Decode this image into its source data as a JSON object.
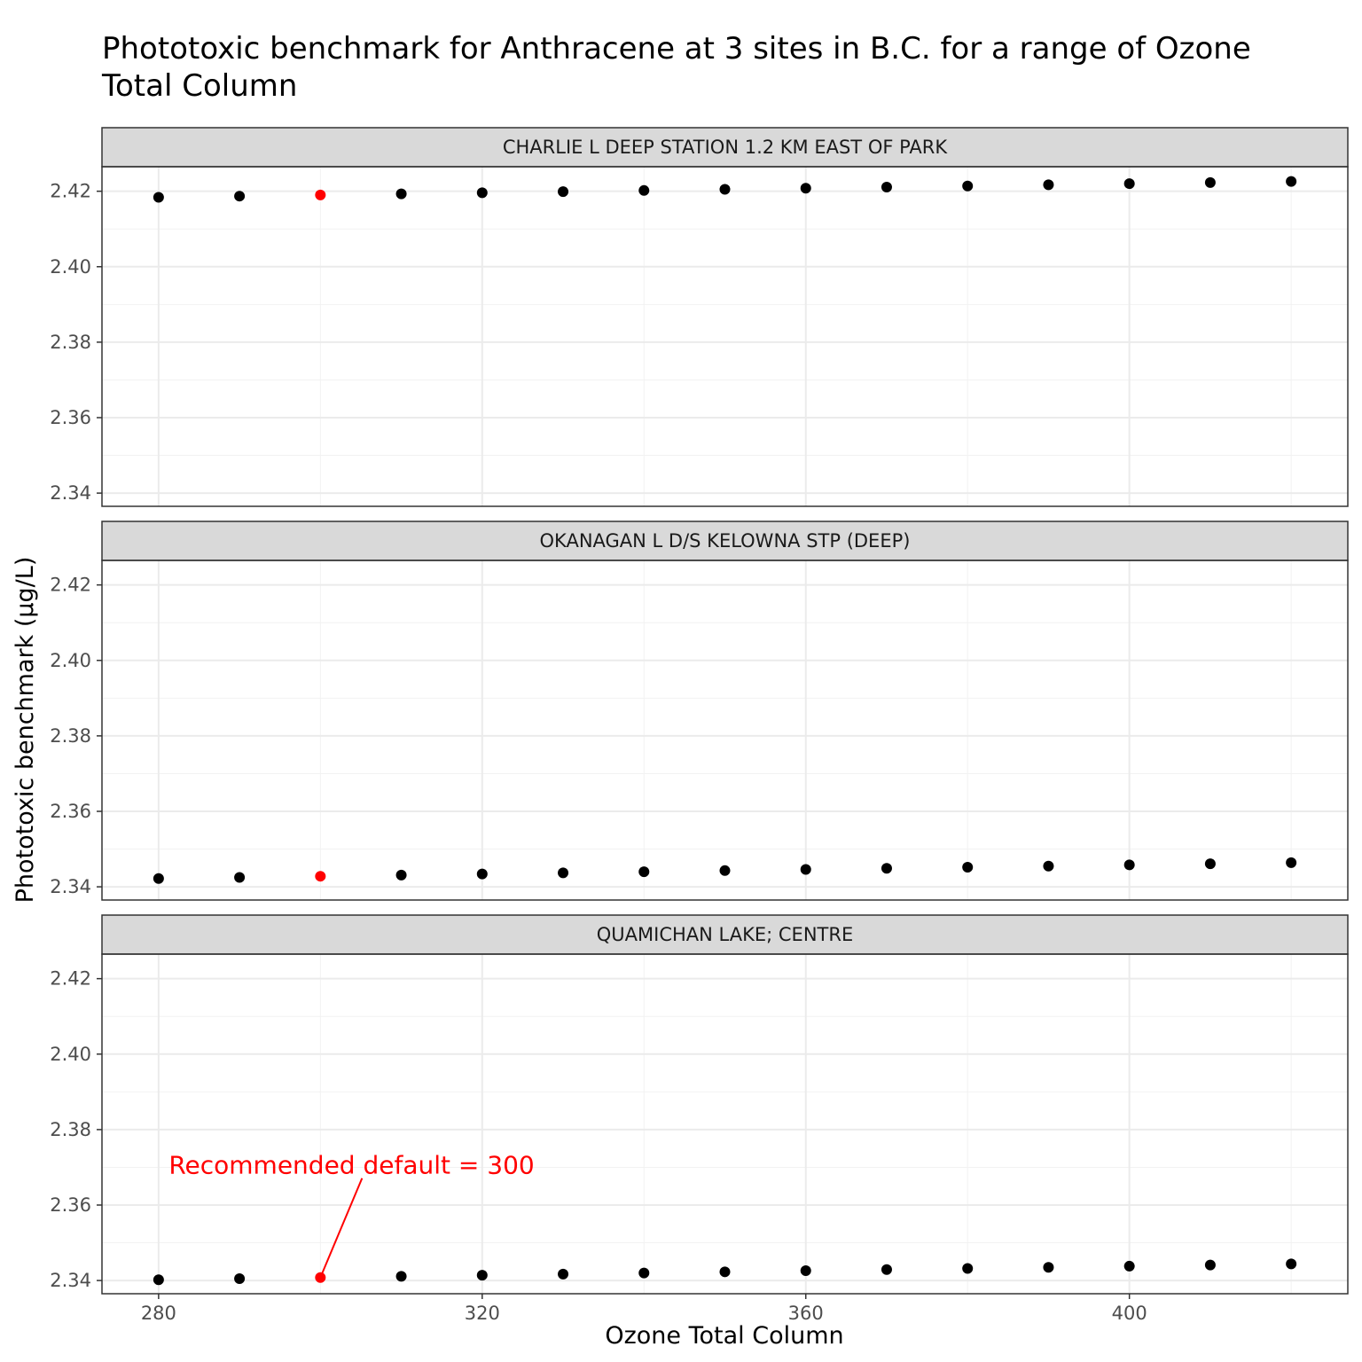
{
  "chart_data": {
    "type": "scatter",
    "title_lines": [
      "Phototoxic benchmark for Anthracene at 3 sites in B.C. for a range of Ozone",
      "Total Column"
    ],
    "xlabel": "Ozone Total Column",
    "ylabel": "Phototoxic benchmark (µg/L)",
    "xlim": [
      273,
      427
    ],
    "ylim": [
      2.3365,
      2.4265
    ],
    "x_ticks": [
      280,
      320,
      360,
      400
    ],
    "y_ticks": [
      2.34,
      2.36,
      2.38,
      2.4,
      2.42
    ],
    "y_tick_labels": [
      "2.34",
      "2.36",
      "2.38",
      "2.40",
      "2.42"
    ],
    "grid": true,
    "highlight_x": 300,
    "highlight_color": "#ff0000",
    "point_color": "#000000",
    "x": [
      280,
      290,
      300,
      310,
      320,
      330,
      340,
      350,
      360,
      370,
      380,
      390,
      400,
      410,
      420
    ],
    "panels": [
      {
        "strip": "CHARLIE L DEEP STATION 1.2 KM EAST OF PARK",
        "values": [
          2.4184,
          2.4187,
          2.419,
          2.4193,
          2.4196,
          2.4199,
          2.4202,
          2.4205,
          2.4208,
          2.4211,
          2.4214,
          2.4217,
          2.422,
          2.4223,
          2.4226
        ]
      },
      {
        "strip": "OKANAGAN L D/S KELOWNA STP (DEEP)",
        "values": [
          2.3422,
          2.3425,
          2.3428,
          2.3431,
          2.3434,
          2.3437,
          2.344,
          2.3443,
          2.3446,
          2.3449,
          2.3452,
          2.3455,
          2.3458,
          2.3461,
          2.3464
        ]
      },
      {
        "strip": "QUAMICHAN LAKE; CENTRE",
        "values": [
          2.3402,
          2.3405,
          2.3408,
          2.3411,
          2.3414,
          2.3417,
          2.342,
          2.3423,
          2.3426,
          2.3429,
          2.3432,
          2.3435,
          2.3438,
          2.3441,
          2.3444
        ]
      }
    ],
    "annotation": {
      "text": "Recommended default = 300",
      "panel": 2,
      "x": 300,
      "color": "#ff0000"
    }
  }
}
